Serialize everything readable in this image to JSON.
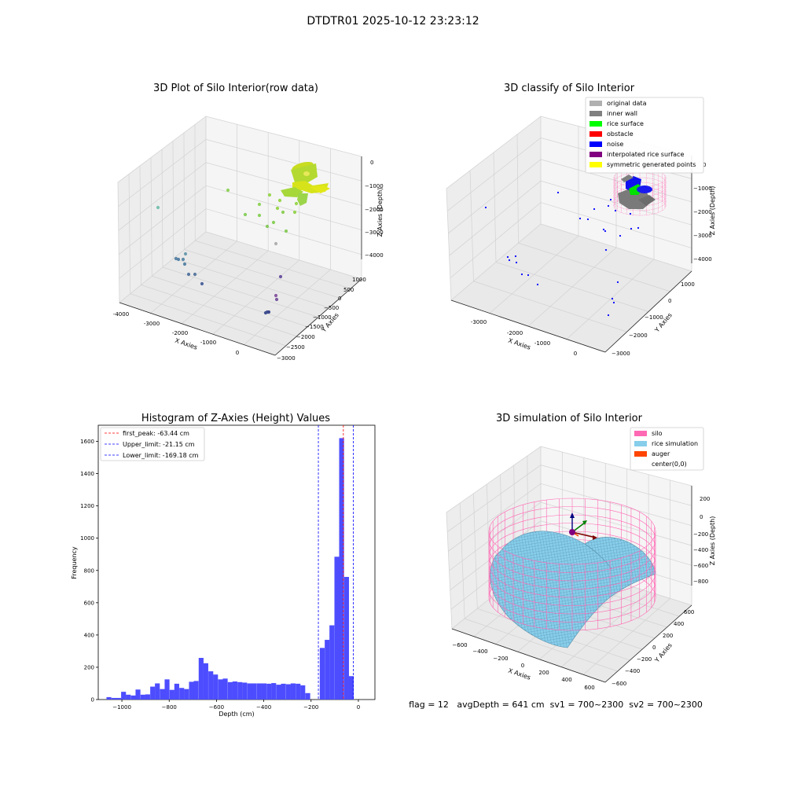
{
  "figure": {
    "title": "DTDTR01 2025-10-12 23:23:12"
  },
  "colors": {
    "pane": "#f2f2f2",
    "pane_dark": "#e6e6e6",
    "grid": "#cfcfcf",
    "hist_bar": "#4d4dff",
    "peak_line": "#ff0000",
    "limit_line": "#0000ff",
    "silo": "#ff69b4",
    "rice": "#87ceeb",
    "auger": "#ff4500"
  },
  "chart_data": [
    {
      "type": "scatter3d",
      "title": "3D Plot of Silo Interior(row data)",
      "xlabel": "X Axies",
      "ylabel": "Y Axies",
      "zlabel": "Z Axies (Depth)",
      "x_ticks": [
        "-4000",
        "-3000",
        "-2000",
        "-1000",
        "0"
      ],
      "y_ticks": [
        "1000",
        "500",
        "0",
        "−500",
        "−1000",
        "−1500",
        "−2000",
        "−2500",
        "−3000"
      ],
      "z_ticks": [
        "0",
        "−1000",
        "−2000",
        "−3000",
        "−4000"
      ],
      "xlim": [
        -4000,
        0
      ],
      "ylim": [
        -3000,
        1000
      ],
      "zlim": [
        -4500,
        0
      ],
      "grid": true
    },
    {
      "type": "scatter3d",
      "title": "3D classify of Silo Interior",
      "xlabel": "X Axies",
      "ylabel": "Y Axies",
      "zlabel": "Z Axies (Depth)",
      "x_ticks": [
        "-3000",
        "-2000",
        "-1000",
        "0"
      ],
      "y_ticks": [
        "1000",
        "0",
        "−1000",
        "−2000",
        "−3000"
      ],
      "z_ticks": [
        "0",
        "−1000",
        "−2000",
        "−3000",
        "−4000"
      ],
      "legend": [
        {
          "label": "original data",
          "color": "#b0b0b0"
        },
        {
          "label": "inner wall",
          "color": "#808080"
        },
        {
          "label": "rice surface",
          "color": "#00ff00"
        },
        {
          "label": "obstacle",
          "color": "#ff0000"
        },
        {
          "label": "noise",
          "color": "#0000ff"
        },
        {
          "label": "interpolated rice surface",
          "color": "#800080"
        },
        {
          "label": "symmetric generated points",
          "color": "#ffff00"
        }
      ],
      "legend_loc": "upper right",
      "grid": true
    },
    {
      "type": "bar",
      "title": "Histogram of Z-Axies (Height) Values",
      "xlabel": "Depth (cm)",
      "ylabel": "Frequency",
      "xlim": [
        -1100,
        70
      ],
      "ylim": [
        0,
        1700
      ],
      "x_ticks": [
        -1000,
        -800,
        -600,
        -400,
        -200,
        0
      ],
      "y_ticks": [
        0,
        200,
        400,
        600,
        800,
        1000,
        1200,
        1400,
        1600
      ],
      "bin_width": 20.5,
      "bin_centers": [
        -1055,
        -1034,
        -1014,
        -993,
        -973,
        -952,
        -932,
        -911,
        -891,
        -870,
        -850,
        -829,
        -809,
        -788,
        -768,
        -747,
        -727,
        -706,
        -686,
        -665,
        -645,
        -624,
        -604,
        -583,
        -563,
        -542,
        -522,
        -501,
        -481,
        -460,
        -440,
        -419,
        -399,
        -378,
        -358,
        -337,
        -317,
        -296,
        -276,
        -255,
        -235,
        -214,
        -194,
        -173,
        -153,
        -132,
        -112,
        -91,
        -71,
        -50,
        -30,
        -9
      ],
      "values": [
        15,
        10,
        10,
        48,
        30,
        25,
        62,
        30,
        32,
        80,
        100,
        65,
        125,
        60,
        98,
        72,
        65,
        110,
        115,
        258,
        225,
        175,
        155,
        125,
        130,
        108,
        112,
        108,
        105,
        100,
        100,
        100,
        100,
        98,
        102,
        92,
        98,
        95,
        100,
        98,
        88,
        40,
        0,
        0,
        320,
        370,
        460,
        885,
        1620,
        760,
        145,
        0
      ],
      "lines": [
        {
          "label": "first_peak: -63.44 cm",
          "x": -63.44,
          "color": "#ff0000"
        },
        {
          "label": "Upper_limit: -21.15 cm",
          "x": -21.15,
          "color": "#0000ff"
        },
        {
          "label": "Lower_limit: -169.18 cm",
          "x": -169.18,
          "color": "#0000ff"
        }
      ],
      "legend_loc": "upper left",
      "grid": false
    },
    {
      "type": "surface3d",
      "title": "3D simulation of Silo Interior",
      "xlabel": "X Axies",
      "ylabel": "Y Axies",
      "zlabel": "Z Axies (Depth)",
      "x_ticks": [
        "−600",
        "−400",
        "−200",
        "0",
        "200",
        "400",
        "600"
      ],
      "y_ticks": [
        "600",
        "400",
        "200",
        "0",
        "−200",
        "−400",
        "−600"
      ],
      "z_ticks": [
        "200",
        "0",
        "−200",
        "−400",
        "−600",
        "−800"
      ],
      "legend": [
        {
          "label": "silo",
          "color": "#ff69b4"
        },
        {
          "label": "rice simulation",
          "color": "#87ceeb"
        },
        {
          "label": "auger",
          "color": "#ff4500"
        },
        {
          "label": "center(0,0)",
          "color": ""
        }
      ],
      "legend_loc": "upper right",
      "grid": true
    }
  ],
  "footer": {
    "status": "flag = 12   avgDepth = 641 cm  sv1 = 700~2300  sv2 = 700~2300"
  }
}
